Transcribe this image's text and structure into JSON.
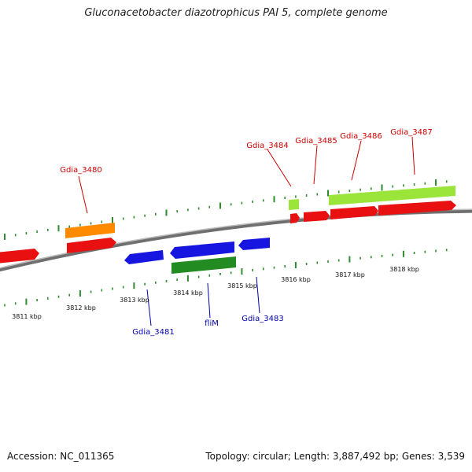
{
  "title": "Gluconacetobacter diazotrophicus PAI 5, complete genome",
  "footer": {
    "accession": "Accession: NC_011365",
    "summary": "Topology: circular; Length: 3,887,492 bp; Genes: 3,539"
  },
  "scale_labels": [
    "3811 kbp",
    "3812 kbp",
    "3813 kbp",
    "3814 kbp",
    "3815 kbp",
    "3816 kbp",
    "3817 kbp",
    "3818 kbp"
  ],
  "colors": {
    "forward_cds": "#ee1111",
    "reverse_cds": "#1a1ae6",
    "orange_feature": "#ff8c00",
    "lime_feature": "#99ee33",
    "green_feature": "#228b22",
    "backbone": "#888888",
    "tick": "#2e8b2e",
    "forward_label": "#cc0000",
    "reverse_label": "#0000aa"
  },
  "gene_labels": {
    "top": [
      "Gdia_3480",
      "Gdia_3484",
      "Gdia_3485",
      "Gdia_3486",
      "Gdia_3487"
    ],
    "bottom": [
      "Gdia_3481",
      "fliM",
      "Gdia_3483"
    ]
  }
}
